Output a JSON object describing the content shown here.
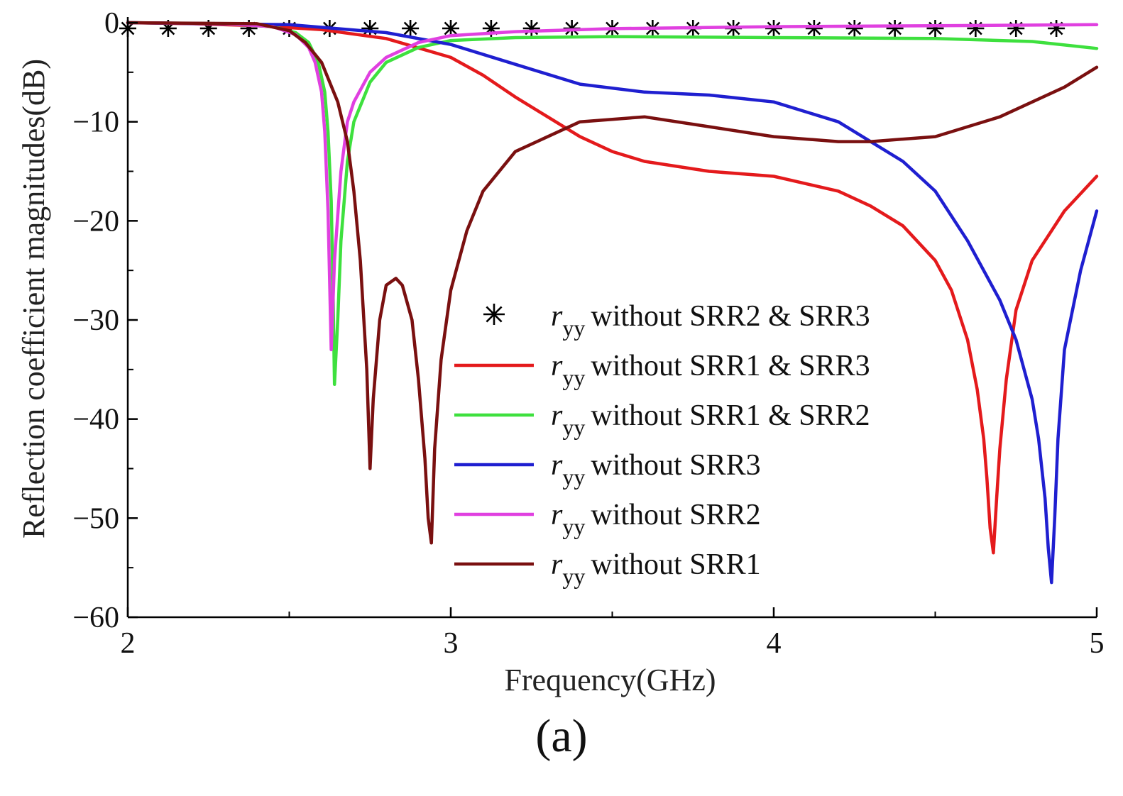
{
  "caption": "(a)",
  "chart_data": {
    "type": "line",
    "title": "",
    "xlabel": "Frequency(GHz)",
    "ylabel": "Reflection coefficient magnitudes(dB)",
    "xlim": [
      2,
      5
    ],
    "ylim": [
      -60,
      0
    ],
    "xticks": [
      2,
      3,
      4,
      5
    ],
    "yticks": [
      0,
      -10,
      -20,
      -30,
      -40,
      -50,
      -60
    ],
    "xtick_labels": [
      "2",
      "3",
      "4",
      "5"
    ],
    "ytick_labels": [
      "0",
      "−10",
      "−20",
      "−30",
      "−40",
      "−50",
      "−60"
    ],
    "grid": false,
    "legend_position": "center-right",
    "series": [
      {
        "name": "without SRR2 & SRR3",
        "symbol": "r",
        "subscript": "yy",
        "color": "#000000",
        "style": "markers",
        "marker": "asterisk",
        "x": [
          2.0,
          2.125,
          2.25,
          2.375,
          2.5,
          2.625,
          2.75,
          2.875,
          3.0,
          3.125,
          3.25,
          3.375,
          3.5,
          3.625,
          3.75,
          3.875,
          4.0,
          4.125,
          4.25,
          4.375,
          4.5,
          4.625,
          4.75,
          4.875
        ],
        "y": [
          0,
          0,
          0,
          0,
          0,
          0,
          0,
          0,
          0,
          0,
          0,
          0,
          0,
          0,
          0,
          0,
          0,
          0,
          0,
          0,
          0,
          0,
          0,
          0
        ]
      },
      {
        "name": "without SRR1 & SRR3",
        "symbol": "r",
        "subscript": "yy",
        "color": "#e41a1c",
        "style": "line",
        "x": [
          2.0,
          2.2,
          2.4,
          2.6,
          2.8,
          3.0,
          3.1,
          3.2,
          3.3,
          3.4,
          3.5,
          3.6,
          3.8,
          4.0,
          4.2,
          4.3,
          4.4,
          4.5,
          4.55,
          4.6,
          4.63,
          4.65,
          4.66,
          4.67,
          4.68,
          4.69,
          4.7,
          4.72,
          4.75,
          4.8,
          4.9,
          5.0
        ],
        "y": [
          0,
          -0.1,
          -0.3,
          -0.7,
          -1.6,
          -3.5,
          -5.3,
          -7.5,
          -9.5,
          -11.5,
          -13.0,
          -14.0,
          -15.0,
          -15.5,
          -17.0,
          -18.5,
          -20.5,
          -24.0,
          -27.0,
          -32.0,
          -37.0,
          -42.0,
          -46.0,
          -51.0,
          -53.5,
          -48.0,
          -43.0,
          -36.0,
          -29.0,
          -24.0,
          -19.0,
          -15.5
        ]
      },
      {
        "name": "without SRR1 & SRR2",
        "symbol": "r",
        "subscript": "yy",
        "color": "#3ee03e",
        "style": "line",
        "x": [
          2.0,
          2.3,
          2.45,
          2.52,
          2.56,
          2.59,
          2.61,
          2.62,
          2.63,
          2.635,
          2.64,
          2.65,
          2.66,
          2.68,
          2.7,
          2.75,
          2.8,
          2.9,
          3.0,
          3.2,
          3.5,
          4.0,
          4.5,
          4.8,
          5.0
        ],
        "y": [
          0,
          -0.1,
          -0.4,
          -1.0,
          -2.0,
          -4.0,
          -7.0,
          -11.0,
          -18.0,
          -26.0,
          -36.5,
          -30.0,
          -22.0,
          -14.0,
          -10.0,
          -6.0,
          -4.0,
          -2.5,
          -1.8,
          -1.5,
          -1.4,
          -1.5,
          -1.6,
          -1.9,
          -2.6
        ]
      },
      {
        "name": "without SRR3",
        "symbol": "r",
        "subscript": "yy",
        "color": "#1f1fd0",
        "style": "line",
        "x": [
          2.0,
          2.5,
          2.8,
          3.0,
          3.2,
          3.4,
          3.6,
          3.8,
          4.0,
          4.2,
          4.4,
          4.5,
          4.6,
          4.7,
          4.75,
          4.8,
          4.82,
          4.84,
          4.85,
          4.86,
          4.87,
          4.88,
          4.9,
          4.95,
          5.0
        ],
        "y": [
          0,
          -0.2,
          -1.0,
          -2.2,
          -4.2,
          -6.2,
          -7.0,
          -7.3,
          -8.0,
          -10.0,
          -14.0,
          -17.0,
          -22.0,
          -28.0,
          -32.0,
          -38.0,
          -42.0,
          -48.0,
          -53.0,
          -56.5,
          -50.0,
          -42.0,
          -33.0,
          -25.0,
          -19.0
        ]
      },
      {
        "name": "without SRR2",
        "symbol": "r",
        "subscript": "yy",
        "color": "#e040e0",
        "style": "line",
        "x": [
          2.0,
          2.3,
          2.45,
          2.52,
          2.56,
          2.58,
          2.6,
          2.61,
          2.62,
          2.63,
          2.64,
          2.66,
          2.68,
          2.7,
          2.75,
          2.8,
          2.9,
          3.0,
          3.2,
          3.5,
          4.0,
          4.5,
          5.0
        ],
        "y": [
          0,
          -0.1,
          -0.4,
          -1.2,
          -2.5,
          -4.0,
          -7.0,
          -11.0,
          -19.0,
          -33.0,
          -24.0,
          -15.0,
          -10.0,
          -8.0,
          -5.0,
          -3.5,
          -2.0,
          -1.3,
          -0.9,
          -0.6,
          -0.4,
          -0.3,
          -0.2
        ]
      },
      {
        "name": "without SRR1",
        "symbol": "r",
        "subscript": "yy",
        "color": "#7a1010",
        "style": "line",
        "x": [
          2.0,
          2.4,
          2.5,
          2.55,
          2.6,
          2.65,
          2.68,
          2.7,
          2.72,
          2.74,
          2.75,
          2.76,
          2.78,
          2.8,
          2.83,
          2.85,
          2.88,
          2.9,
          2.92,
          2.93,
          2.94,
          2.95,
          2.97,
          3.0,
          3.05,
          3.1,
          3.2,
          3.4,
          3.6,
          3.8,
          4.0,
          4.2,
          4.3,
          4.5,
          4.7,
          4.9,
          5.0
        ],
        "y": [
          0,
          -0.1,
          -0.8,
          -2.0,
          -4.0,
          -8.0,
          -12.0,
          -17.0,
          -24.0,
          -35.0,
          -45.0,
          -38.0,
          -30.0,
          -26.5,
          -25.8,
          -26.5,
          -30.0,
          -36.0,
          -44.0,
          -50.0,
          -52.5,
          -43.0,
          -34.0,
          -27.0,
          -21.0,
          -17.0,
          -13.0,
          -10.0,
          -9.5,
          -10.5,
          -11.5,
          -12.0,
          -12.0,
          -11.5,
          -9.5,
          -6.5,
          -4.5
        ]
      }
    ]
  }
}
